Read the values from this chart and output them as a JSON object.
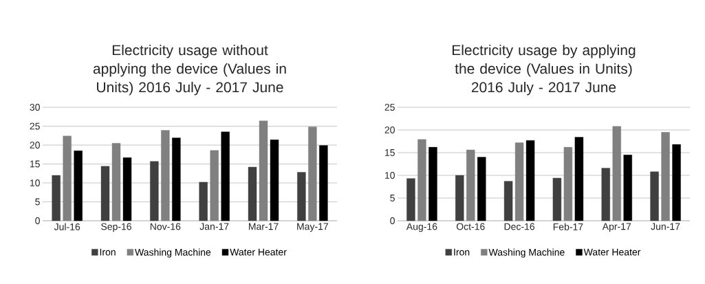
{
  "chart_data": [
    {
      "type": "bar",
      "title": "Electricity usage without applying the device (Values in Units) 2016 July - 2017 June",
      "categories": [
        "Jul-16",
        "Sep-16",
        "Nov-16",
        "Jan-17",
        "Mar-17",
        "May-17"
      ],
      "ylim": [
        0,
        30
      ],
      "yticks": [
        0,
        5,
        10,
        15,
        20,
        25,
        30
      ],
      "grid": "y",
      "legend": "bottom",
      "series": [
        {
          "name": "Iron",
          "color": "#404040",
          "values": [
            12.0,
            14.4,
            15.7,
            10.2,
            14.2,
            12.8
          ]
        },
        {
          "name": "Washing Machine",
          "color": "#808080",
          "values": [
            22.4,
            20.5,
            23.9,
            18.6,
            26.4,
            24.8
          ]
        },
        {
          "name": "Water Heater",
          "color": "#000000",
          "values": [
            18.5,
            16.7,
            21.9,
            23.5,
            21.4,
            19.9
          ]
        }
      ]
    },
    {
      "type": "bar",
      "title": "Electricity usage by applying the device (Values in Units) 2016 July - 2017 June",
      "categories": [
        "Aug-16",
        "Oct-16",
        "Dec-16",
        "Feb-17",
        "Apr-17",
        "Jun-17"
      ],
      "ylim": [
        0,
        25
      ],
      "yticks": [
        0,
        5,
        10,
        15,
        20,
        25
      ],
      "grid": "y",
      "legend": "bottom",
      "series": [
        {
          "name": "Iron",
          "color": "#404040",
          "values": [
            9.3,
            10.0,
            8.7,
            9.4,
            11.6,
            10.8
          ]
        },
        {
          "name": "Washing Machine",
          "color": "#808080",
          "values": [
            17.9,
            15.6,
            17.2,
            16.2,
            20.8,
            19.5
          ]
        },
        {
          "name": "Water Heater",
          "color": "#000000",
          "values": [
            16.2,
            14.0,
            17.7,
            18.4,
            14.5,
            16.8
          ]
        }
      ]
    }
  ]
}
